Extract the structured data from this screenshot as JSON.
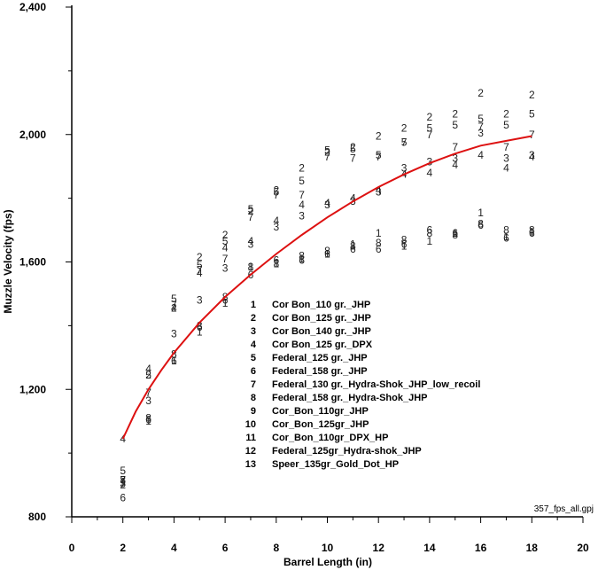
{
  "chart_data": {
    "type": "scatter",
    "title": "",
    "xlabel": "Barrel Length (in)",
    "ylabel": "Muzzle Velocity (fps)",
    "xlim": [
      0,
      20
    ],
    "ylim": [
      800,
      2400
    ],
    "x_ticks": [
      "0",
      "2",
      "4",
      "6",
      "8",
      "10",
      "12",
      "14",
      "16",
      "18",
      "20"
    ],
    "y_ticks": [
      "800",
      "1,200",
      "1,600",
      "2,000",
      "2,400"
    ],
    "grid": false,
    "legend_position": "center",
    "footnote": "357_fps_all.gpj",
    "marker_color": "#222222",
    "fit_color": "#dd1111",
    "series": [
      {
        "name": "Cor Bon_110 gr._JHP",
        "marker": "1",
        "x": [
          2,
          3,
          4,
          5,
          6,
          7,
          8,
          9,
          10,
          11,
          12,
          13,
          14,
          15,
          16,
          17,
          18
        ],
        "y": [
          910,
          1100,
          1290,
          1380,
          1470,
          1585,
          1595,
          1610,
          1625,
          1655,
          1690,
          1650,
          1665,
          1690,
          1755,
          1680,
          1695
        ]
      },
      {
        "name": "Cor Bon_125 gr._JHP",
        "marker": "2",
        "x": [
          2,
          3,
          4,
          5,
          6,
          7,
          8,
          9,
          10,
          11,
          12,
          13,
          14,
          15,
          16,
          17,
          18
        ],
        "y": [
          900,
          1245,
          1455,
          1615,
          1685,
          1760,
          1825,
          1895,
          1945,
          1960,
          1995,
          2020,
          2055,
          2065,
          2130,
          2065,
          2125
        ]
      },
      {
        "name": "Cor Bon_140 gr._JHP",
        "marker": "3",
        "x": [
          2,
          3,
          4,
          5,
          6,
          7,
          8,
          9,
          10,
          11,
          12,
          13,
          14,
          15,
          16,
          17,
          18
        ],
        "y": [
          905,
          1165,
          1375,
          1480,
          1580,
          1655,
          1710,
          1745,
          1780,
          1790,
          1820,
          1895,
          1915,
          1925,
          2005,
          1925,
          1935
        ]
      },
      {
        "name": "Cor Bon_125 gr._DPX",
        "marker": "4",
        "x": [
          2,
          3,
          4,
          5,
          6,
          7,
          8,
          9,
          10,
          11,
          12,
          13,
          14,
          15,
          16,
          17,
          18
        ],
        "y": [
          1045,
          1265,
          1455,
          1565,
          1645,
          1665,
          1730,
          1780,
          1785,
          1800,
          1825,
          1875,
          1880,
          1905,
          1935,
          1895,
          1930
        ]
      },
      {
        "name": "Federal_125 gr._JHP",
        "marker": "5",
        "x": [
          2,
          3,
          4,
          5,
          6,
          7,
          8,
          9,
          10,
          11,
          12,
          13,
          14,
          15,
          16,
          17,
          18
        ],
        "y": [
          945,
          1245,
          1485,
          1590,
          1665,
          1765,
          1820,
          1855,
          1950,
          1955,
          1935,
          1975,
          2020,
          2030,
          2050,
          2030,
          2065
        ]
      },
      {
        "name": "Federal_158 gr._JHP",
        "marker": "6",
        "x": [
          2,
          3,
          4,
          5,
          6,
          7,
          8,
          9,
          10,
          11,
          12,
          13,
          14,
          15,
          16,
          17,
          18
        ],
        "y": [
          860,
          1105,
          1290,
          1395,
          1480,
          1560,
          1605,
          1605,
          1625,
          1640,
          1640,
          1655,
          1700,
          1690,
          1715,
          1675,
          1690
        ]
      },
      {
        "name": "Federal_130 gr._Hydra-Shok_JHP_low_recoil",
        "marker": "7",
        "x": [
          2,
          3,
          4,
          5,
          6,
          7,
          8,
          9,
          10,
          11,
          12,
          13,
          14,
          15,
          16,
          17,
          18
        ],
        "y": [
          915,
          1190,
          1465,
          1575,
          1610,
          1740,
          1810,
          1810,
          1930,
          1925,
          1930,
          1975,
          2000,
          1960,
          2025,
          1960,
          2000
        ]
      },
      {
        "name": "Federal_158 gr._Hydra-Shok_JHP",
        "marker": "8",
        "x": [
          2,
          3,
          4,
          5,
          6,
          7,
          8,
          9,
          10,
          11,
          12,
          13,
          14,
          15,
          16,
          17,
          18
        ],
        "y": [
          915,
          1110,
          1310,
          1400,
          1490,
          1585,
          1595,
          1620,
          1635,
          1650,
          1660,
          1670,
          1690,
          1685,
          1720,
          1700,
          1700
        ]
      }
    ],
    "legend": [
      {
        "num": "1",
        "label": "Cor Bon_110 gr._JHP"
      },
      {
        "num": "2",
        "label": "Cor Bon_125 gr._JHP"
      },
      {
        "num": "3",
        "label": "Cor Bon_140 gr._JHP"
      },
      {
        "num": "4",
        "label": "Cor Bon_125 gr._DPX"
      },
      {
        "num": "5",
        "label": "Federal_125 gr._JHP"
      },
      {
        "num": "6",
        "label": "Federal_158 gr._JHP"
      },
      {
        "num": "7",
        "label": "Federal_130 gr._Hydra-Shok_JHP_low_recoil"
      },
      {
        "num": "8",
        "label": "Federal_158 gr._Hydra-Shok_JHP"
      },
      {
        "num": "9",
        "label": "Cor_Bon_110gr_JHP"
      },
      {
        "num": "10",
        "label": "Cor_Bon_125gr_JHP"
      },
      {
        "num": "11",
        "label": "Cor_Bon_110gr_DPX_HP"
      },
      {
        "num": "12",
        "label": "Federal_125gr_Hydra-shok_JHP"
      },
      {
        "num": "13",
        "label": "Speer_135gr_Gold_Dot_HP"
      }
    ],
    "fit_curve": {
      "x": [
        2,
        2.5,
        3,
        3.5,
        4,
        5,
        6,
        7,
        8,
        9,
        10,
        11,
        12,
        13,
        14,
        15,
        16,
        17,
        18
      ],
      "y": [
        1045,
        1130,
        1200,
        1260,
        1315,
        1410,
        1490,
        1560,
        1625,
        1685,
        1740,
        1790,
        1835,
        1875,
        1910,
        1940,
        1965,
        1980,
        1995
      ]
    }
  }
}
